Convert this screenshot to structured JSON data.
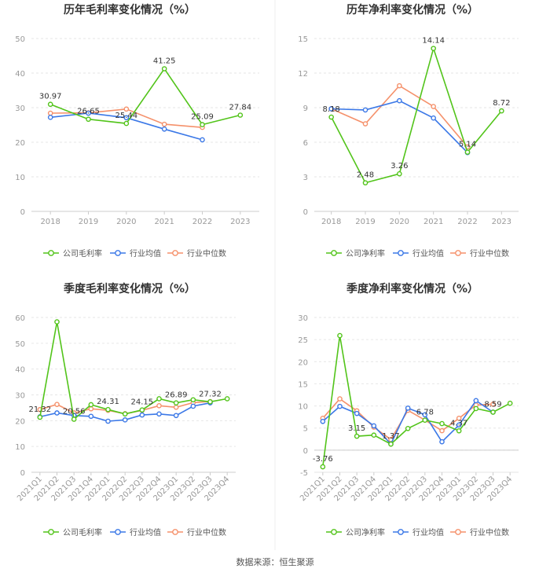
{
  "footer": {
    "source": "数据来源：恒生聚源"
  },
  "colors": {
    "company": "#52c41a",
    "mean": "#3b78e7",
    "median": "#f5916b",
    "grid": "#e6e6e6",
    "axis": "#999999",
    "label": "#333333"
  },
  "chart_data": [
    {
      "type": "line",
      "title": "历年毛利率变化情况（%）",
      "categories": [
        "2018",
        "2019",
        "2020",
        "2021",
        "2022",
        "2023"
      ],
      "ylim": [
        0,
        50
      ],
      "yticks": [
        0,
        10,
        20,
        30,
        40,
        50
      ],
      "series": [
        {
          "name": "公司毛利率",
          "role": "company",
          "values": [
            30.97,
            26.65,
            25.44,
            41.25,
            25.09,
            27.84
          ],
          "labels": [
            "30.97",
            "26.65",
            "25.44",
            "41.25",
            "25.09",
            "27.84"
          ]
        },
        {
          "name": "行业均值",
          "role": "mean",
          "values": [
            27.2,
            28.4,
            27.1,
            23.8,
            20.7,
            null
          ]
        },
        {
          "name": "行业中位数",
          "role": "median",
          "values": [
            28.4,
            28.5,
            29.6,
            25.2,
            24.3,
            null
          ]
        }
      ]
    },
    {
      "type": "line",
      "title": "历年净利率变化情况（%）",
      "categories": [
        "2018",
        "2019",
        "2020",
        "2021",
        "2022",
        "2023"
      ],
      "ylim": [
        0,
        15
      ],
      "yticks": [
        0,
        3,
        6,
        9,
        12,
        15
      ],
      "series": [
        {
          "name": "公司净利率",
          "role": "company",
          "values": [
            8.18,
            2.48,
            3.26,
            14.14,
            5.14,
            8.72
          ],
          "labels": [
            "8.18",
            "2.48",
            "3.26",
            "14.14",
            "5.14",
            "8.72"
          ]
        },
        {
          "name": "行业均值",
          "role": "mean",
          "values": [
            8.9,
            8.8,
            9.6,
            8.1,
            5.1,
            null
          ]
        },
        {
          "name": "行业中位数",
          "role": "median",
          "values": [
            8.9,
            7.6,
            10.9,
            9.1,
            5.6,
            null
          ]
        }
      ]
    },
    {
      "type": "line",
      "title": "季度毛利率变化情况（%）",
      "categories": [
        "2021Q1",
        "2021Q2",
        "2021Q3",
        "2021Q4",
        "2022Q1",
        "2022Q2",
        "2022Q3",
        "2022Q4",
        "2023Q1",
        "2023Q2",
        "2023Q3",
        "2023Q4"
      ],
      "ylim": [
        0,
        60
      ],
      "yticks": [
        0,
        10,
        20,
        30,
        40,
        50,
        60
      ],
      "series": [
        {
          "name": "公司毛利率",
          "role": "company",
          "values": [
            21.32,
            58.3,
            20.56,
            26.2,
            24.31,
            22.6,
            24.15,
            28.5,
            26.89,
            28.1,
            27.32,
            28.5
          ],
          "labels": [
            "21.32",
            null,
            "20.56",
            null,
            "24.31",
            null,
            "24.15",
            null,
            "26.89",
            null,
            "27.32",
            null
          ]
        },
        {
          "name": "行业均值",
          "role": "mean",
          "values": [
            21.5,
            23.0,
            22.0,
            21.7,
            19.8,
            20.3,
            22.2,
            22.6,
            22.0,
            25.6,
            26.9,
            null
          ]
        },
        {
          "name": "行业中位数",
          "role": "median",
          "values": [
            24.3,
            26.3,
            23.0,
            24.6,
            24.0,
            22.7,
            24.0,
            25.8,
            25.2,
            27.0,
            27.4,
            null
          ]
        }
      ]
    },
    {
      "type": "line",
      "title": "季度净利率变化情况（%）",
      "categories": [
        "2021Q1",
        "2021Q2",
        "2021Q3",
        "2021Q4",
        "2022Q1",
        "2022Q2",
        "2022Q3",
        "2022Q4",
        "2023Q1",
        "2023Q2",
        "2023Q3",
        "2023Q4"
      ],
      "ylim": [
        -5,
        30
      ],
      "yticks": [
        -5,
        0,
        5,
        10,
        15,
        20,
        25,
        30
      ],
      "series": [
        {
          "name": "公司净利率",
          "role": "company",
          "values": [
            -3.76,
            25.9,
            3.15,
            3.4,
            1.37,
            4.9,
            6.78,
            6.0,
            4.37,
            9.4,
            8.59,
            10.6
          ],
          "labels": [
            "-3.76",
            null,
            "3.15",
            null,
            "1.37",
            null,
            "6.78",
            null,
            "4.37",
            null,
            "8.59",
            null
          ]
        },
        {
          "name": "行业均值",
          "role": "mean",
          "values": [
            6.5,
            9.9,
            8.3,
            5.5,
            1.4,
            9.5,
            8.0,
            1.9,
            5.7,
            11.2,
            8.6,
            null
          ]
        },
        {
          "name": "行业中位数",
          "role": "median",
          "values": [
            7.2,
            11.6,
            8.9,
            5.2,
            2.4,
            9.0,
            6.8,
            4.4,
            7.2,
            10.2,
            10.4,
            null
          ]
        }
      ]
    }
  ]
}
